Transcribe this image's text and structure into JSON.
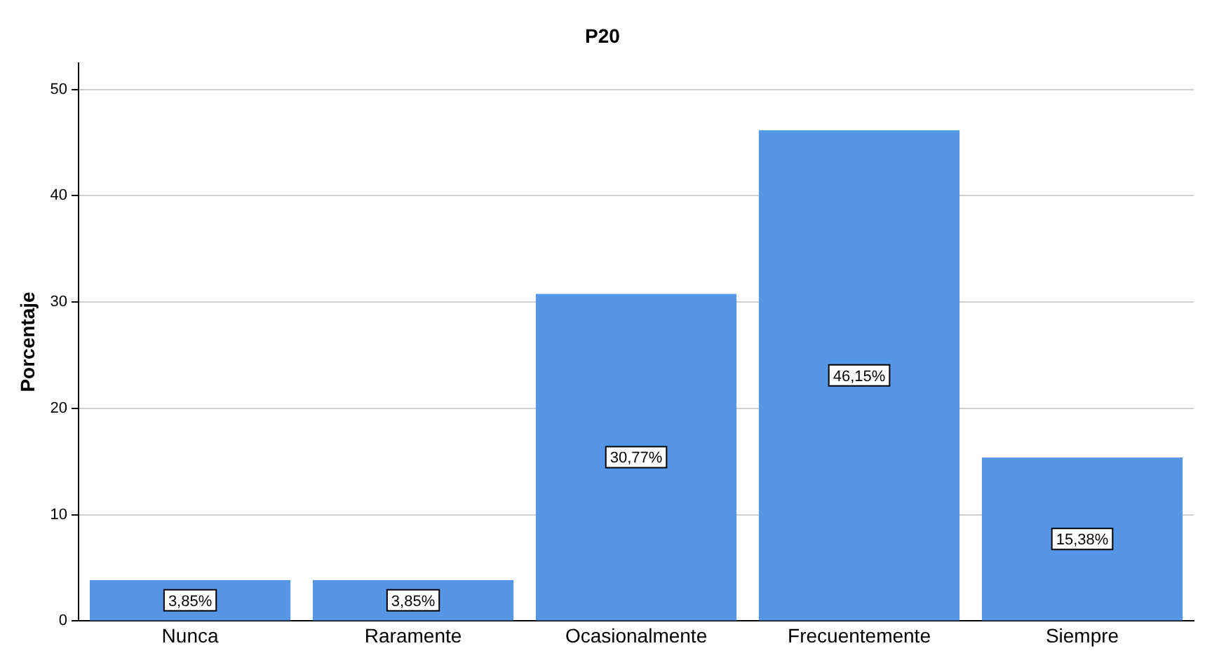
{
  "chart_data": {
    "type": "bar",
    "title": "P20",
    "ylabel": "Porcentaje",
    "categories": [
      "Nunca",
      "Raramente",
      "Ocasionalmente",
      "Frecuentemente",
      "Siempre"
    ],
    "values": [
      3.85,
      3.85,
      30.77,
      46.15,
      15.38
    ],
    "value_labels": [
      "3,85%",
      "3,85%",
      "30,77%",
      "46,15%",
      "15,38%"
    ],
    "color": "#5596e6",
    "ylim": [
      0,
      52.5
    ],
    "yticks": [
      0,
      10,
      20,
      30,
      40,
      50
    ],
    "grid": "y",
    "legend": false
  }
}
